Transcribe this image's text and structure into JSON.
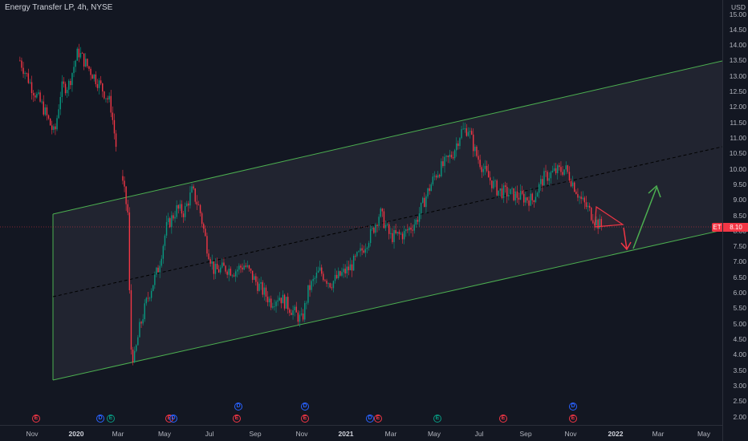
{
  "header": {
    "symbol_label": "Energy Transfer LP, 4h, NYSE"
  },
  "price_axis": {
    "currency": "USD",
    "ticks": [
      "15.00",
      "14.50",
      "14.00",
      "13.50",
      "13.00",
      "12.50",
      "12.00",
      "11.50",
      "11.00",
      "10.50",
      "10.00",
      "9.50",
      "9.00",
      "8.50",
      "8.00",
      "7.50",
      "7.00",
      "6.50",
      "6.00",
      "5.50",
      "5.00",
      "4.50",
      "4.00",
      "3.50",
      "3.00",
      "2.50",
      "2.00"
    ],
    "last_price": "8.10",
    "last_symbol": "ET"
  },
  "time_axis": {
    "ticks": [
      {
        "label": "Nov",
        "bold": false
      },
      {
        "label": "2020",
        "bold": true
      },
      {
        "label": "Mar",
        "bold": false
      },
      {
        "label": "May",
        "bold": false
      },
      {
        "label": "Jul",
        "bold": false
      },
      {
        "label": "Sep",
        "bold": false
      },
      {
        "label": "Nov",
        "bold": false
      },
      {
        "label": "2021",
        "bold": true
      },
      {
        "label": "Mar",
        "bold": false
      },
      {
        "label": "May",
        "bold": false
      },
      {
        "label": "Jul",
        "bold": false
      },
      {
        "label": "Sep",
        "bold": false
      },
      {
        "label": "Nov",
        "bold": false
      },
      {
        "label": "2022",
        "bold": true
      },
      {
        "label": "Mar",
        "bold": false
      },
      {
        "label": "May",
        "bold": false
      }
    ]
  },
  "events": [
    {
      "letter": "E",
      "kind": "earnings",
      "color": "#f23645"
    },
    {
      "letter": "D",
      "kind": "dividend",
      "color": "#2962ff"
    },
    {
      "letter": "E",
      "kind": "earnings",
      "color": "#089981"
    },
    {
      "letter": "D",
      "kind": "dividend",
      "color": "#2962ff"
    },
    {
      "letter": "E",
      "kind": "earnings",
      "color": "#f23645"
    },
    {
      "letter": "D",
      "kind": "dividend",
      "color": "#2962ff"
    },
    {
      "letter": "E",
      "kind": "earnings",
      "color": "#f23645"
    },
    {
      "letter": "D",
      "kind": "dividend",
      "color": "#2962ff"
    },
    {
      "letter": "E",
      "kind": "earnings",
      "color": "#f23645"
    },
    {
      "letter": "D",
      "kind": "dividend",
      "color": "#2962ff"
    },
    {
      "letter": "E",
      "kind": "earnings",
      "color": "#f23645"
    },
    {
      "letter": "E",
      "kind": "earnings",
      "color": "#089981"
    },
    {
      "letter": "E",
      "kind": "earnings",
      "color": "#f23645"
    },
    {
      "letter": "D",
      "kind": "dividend",
      "color": "#2962ff"
    },
    {
      "letter": "E",
      "kind": "earnings",
      "color": "#f23645"
    }
  ],
  "colors": {
    "up": "#089981",
    "down": "#f23645",
    "channel": "#4caf50",
    "midline": "#000000",
    "price_line": "#f23645"
  },
  "chart_data": {
    "type": "candlestick",
    "title": "Energy Transfer LP, 4h, NYSE",
    "ylabel": "USD",
    "ylim": [
      2.0,
      15.0
    ],
    "x_range": [
      "2019-10",
      "2022-05"
    ],
    "series": [
      {
        "values": [
          [
            "2019-10-15",
            13.5
          ],
          [
            "2019-11-01",
            12.6
          ],
          [
            "2019-11-15",
            12.0
          ],
          [
            "2019-12-01",
            11.1
          ],
          [
            "2019-12-10",
            12.6
          ],
          [
            "2019-12-20",
            12.7
          ],
          [
            "2020-01-02",
            13.8
          ],
          [
            "2020-01-15",
            13.3
          ],
          [
            "2020-02-01",
            12.7
          ],
          [
            "2020-02-15",
            12.1
          ],
          [
            "2020-02-25",
            10.3
          ],
          [
            "2020-03-05",
            9.2
          ],
          [
            "2020-03-10",
            8.5
          ],
          [
            "2020-03-13",
            4.3
          ],
          [
            "2020-03-18",
            3.8
          ],
          [
            "2020-03-25",
            4.8
          ],
          [
            "2020-04-05",
            5.8
          ],
          [
            "2020-04-20",
            6.8
          ],
          [
            "2020-05-01",
            8.1
          ],
          [
            "2020-05-15",
            8.7
          ],
          [
            "2020-05-25",
            8.6
          ],
          [
            "2020-06-05",
            9.3
          ],
          [
            "2020-06-15",
            8.7
          ],
          [
            "2020-06-25",
            7.5
          ],
          [
            "2020-07-05",
            6.7
          ],
          [
            "2020-07-20",
            6.8
          ],
          [
            "2020-08-01",
            6.7
          ],
          [
            "2020-08-15",
            6.9
          ],
          [
            "2020-09-01",
            6.3
          ],
          [
            "2020-09-20",
            5.7
          ],
          [
            "2020-10-01",
            5.9
          ],
          [
            "2020-10-20",
            5.4
          ],
          [
            "2020-11-01",
            5.1
          ],
          [
            "2020-11-10",
            6.1
          ],
          [
            "2020-11-25",
            6.7
          ],
          [
            "2020-12-10",
            6.3
          ],
          [
            "2020-12-25",
            6.6
          ],
          [
            "2021-01-05",
            6.8
          ],
          [
            "2021-01-20",
            7.3
          ],
          [
            "2021-02-05",
            8.0
          ],
          [
            "2021-02-15",
            8.6
          ],
          [
            "2021-03-01",
            7.8
          ],
          [
            "2021-03-20",
            7.9
          ],
          [
            "2021-04-05",
            8.3
          ],
          [
            "2021-04-20",
            9.2
          ],
          [
            "2021-05-01",
            9.8
          ],
          [
            "2021-05-15",
            10.2
          ],
          [
            "2021-05-25",
            10.5
          ],
          [
            "2021-06-05",
            11.2
          ],
          [
            "2021-06-15",
            11.3
          ],
          [
            "2021-06-25",
            10.5
          ],
          [
            "2021-07-10",
            9.8
          ],
          [
            "2021-07-25",
            9.3
          ],
          [
            "2021-08-10",
            9.2
          ],
          [
            "2021-08-25",
            9.1
          ],
          [
            "2021-09-10",
            9.0
          ],
          [
            "2021-09-25",
            9.7
          ],
          [
            "2021-10-10",
            9.9
          ],
          [
            "2021-10-25",
            10.0
          ],
          [
            "2021-11-05",
            9.5
          ],
          [
            "2021-11-15",
            9.0
          ],
          [
            "2021-11-25",
            8.7
          ],
          [
            "2021-12-05",
            8.3
          ],
          [
            "2021-12-15",
            8.1
          ]
        ]
      }
    ],
    "annotations": [
      "ascending-channel",
      "channel-midline",
      "descending-triangle",
      "down-arrow",
      "up-arrow"
    ],
    "grid": false
  }
}
